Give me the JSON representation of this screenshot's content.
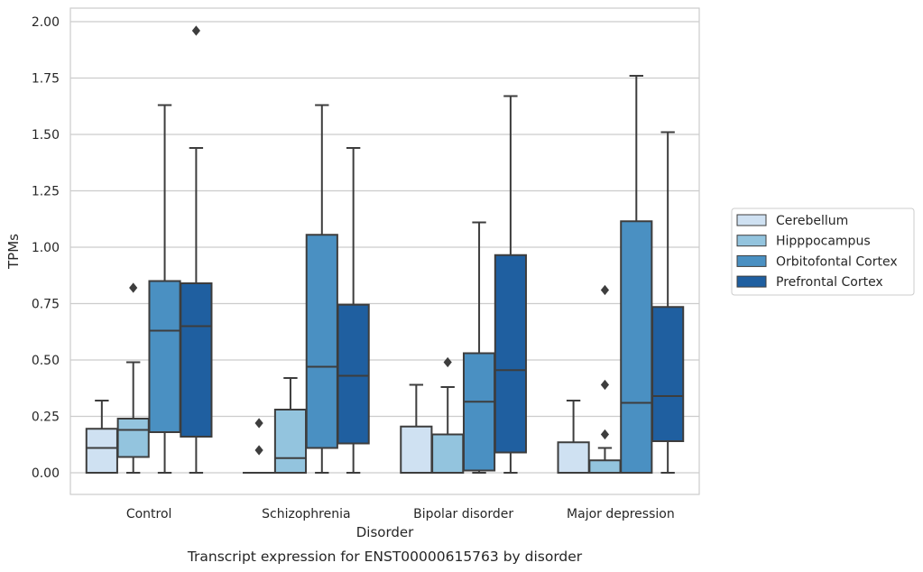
{
  "chart_data": {
    "type": "boxplot",
    "xlabel": "Disorder",
    "ylabel": "TPMs",
    "caption": "Transcript expression for ENST00000615763 by disorder",
    "ylim": [
      -0.1,
      2.06
    ],
    "yticks": [
      "0.00",
      "0.25",
      "0.50",
      "0.75",
      "1.00",
      "1.25",
      "1.50",
      "1.75",
      "2.00"
    ],
    "grid": "horizontal",
    "legend_position": "right-outside",
    "categories": [
      "Control",
      "Schizophrenia",
      "Bipolar disorder",
      "Major depression"
    ],
    "series": [
      {
        "name": "Cerebellum",
        "color": "#cfe1f2",
        "boxes": [
          {
            "q1": 0.0,
            "median": 0.11,
            "q3": 0.195,
            "whisker_low": 0.0,
            "whisker_high": 0.32,
            "outliers": []
          },
          {
            "q1": 0.0,
            "median": 0.0,
            "q3": 0.0,
            "whisker_low": 0.0,
            "whisker_high": 0.0,
            "outliers": [
              0.1,
              0.22
            ]
          },
          {
            "q1": 0.0,
            "median": 0.0,
            "q3": 0.205,
            "whisker_low": 0.0,
            "whisker_high": 0.39,
            "outliers": []
          },
          {
            "q1": 0.0,
            "median": 0.0,
            "q3": 0.135,
            "whisker_low": 0.0,
            "whisker_high": 0.32,
            "outliers": []
          }
        ]
      },
      {
        "name": "Hipppocampus",
        "color": "#93c4de",
        "boxes": [
          {
            "q1": 0.07,
            "median": 0.19,
            "q3": 0.24,
            "whisker_low": 0.0,
            "whisker_high": 0.49,
            "outliers": [
              0.82
            ]
          },
          {
            "q1": 0.0,
            "median": 0.065,
            "q3": 0.28,
            "whisker_low": 0.0,
            "whisker_high": 0.42,
            "outliers": []
          },
          {
            "q1": 0.0,
            "median": 0.0,
            "q3": 0.17,
            "whisker_low": 0.0,
            "whisker_high": 0.38,
            "outliers": [
              0.49
            ]
          },
          {
            "q1": 0.0,
            "median": 0.0,
            "q3": 0.055,
            "whisker_low": 0.0,
            "whisker_high": 0.11,
            "outliers": [
              0.17,
              0.39,
              0.81
            ]
          }
        ]
      },
      {
        "name": "Orbitofontal Cortex",
        "color": "#4a90c2",
        "boxes": [
          {
            "q1": 0.18,
            "median": 0.63,
            "q3": 0.85,
            "whisker_low": 0.0,
            "whisker_high": 1.63,
            "outliers": []
          },
          {
            "q1": 0.11,
            "median": 0.47,
            "q3": 1.055,
            "whisker_low": 0.0,
            "whisker_high": 1.63,
            "outliers": []
          },
          {
            "q1": 0.01,
            "median": 0.315,
            "q3": 0.53,
            "whisker_low": 0.0,
            "whisker_high": 1.11,
            "outliers": []
          },
          {
            "q1": 0.0,
            "median": 0.31,
            "q3": 1.115,
            "whisker_low": 0.0,
            "whisker_high": 1.76,
            "outliers": []
          }
        ]
      },
      {
        "name": "Prefrontal Cortex",
        "color": "#1f5fa0",
        "boxes": [
          {
            "q1": 0.16,
            "median": 0.65,
            "q3": 0.84,
            "whisker_low": 0.0,
            "whisker_high": 1.44,
            "outliers": [
              1.96
            ]
          },
          {
            "q1": 0.13,
            "median": 0.43,
            "q3": 0.745,
            "whisker_low": 0.0,
            "whisker_high": 1.44,
            "outliers": []
          },
          {
            "q1": 0.09,
            "median": 0.455,
            "q3": 0.965,
            "whisker_low": 0.0,
            "whisker_high": 1.67,
            "outliers": []
          },
          {
            "q1": 0.14,
            "median": 0.34,
            "q3": 0.735,
            "whisker_low": 0.0,
            "whisker_high": 1.51,
            "outliers": []
          }
        ]
      }
    ]
  }
}
